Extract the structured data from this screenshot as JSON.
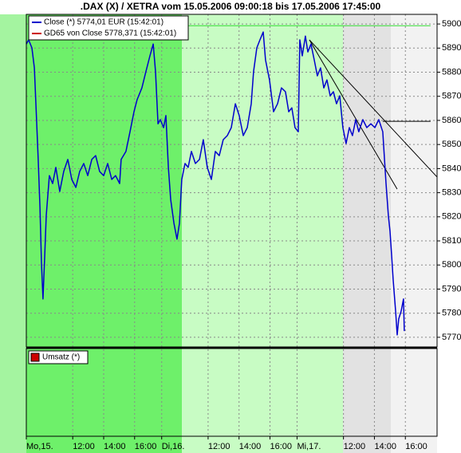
{
  "chart_data": {
    "type": "line",
    "title": ".DAX (X) / XETRA vom 15.05.2006 09:00:18 bis 17.05.2006 17:45:00",
    "x": [
      0,
      0.15,
      0.36,
      0.52,
      0.62,
      0.77,
      0.88,
      0.98,
      1.08,
      1.19,
      1.29,
      1.49,
      1.7,
      1.91,
      2.16,
      2.42,
      2.68,
      2.94,
      3.2,
      3.45,
      3.71,
      3.97,
      4.23,
      4.48,
      4.74,
      5.0,
      5.26,
      5.52,
      5.77,
      6.03,
      6.13,
      6.44,
      6.7,
      6.96,
      7.16,
      7.47,
      7.73,
      7.99,
      8.2,
      8.35,
      8.51,
      8.66,
      8.87,
      9.02,
      9.18,
      9.33,
      9.54,
      9.74,
      9.9,
      10.05,
      10.26,
      10.46,
      10.67,
      10.93,
      11.19,
      11.44,
      11.7,
      11.96,
      12.22,
      12.47,
      12.73,
      12.99,
      13.25,
      13.51,
      13.76,
      14.02,
      14.28,
      14.54,
      14.69,
      14.9,
      15.1,
      15.31,
      15.46,
      15.72,
      15.98,
      16.24,
      16.49,
      16.75,
      16.96,
      17.16,
      17.37,
      17.58,
      17.68,
      17.84,
      18.04,
      18.2,
      18.4,
      18.61,
      18.81,
      19.02,
      19.23,
      19.43,
      19.64,
      19.85,
      20.05,
      20.26,
      20.46,
      20.67,
      20.88,
      21.08,
      21.29,
      21.49,
      21.75,
      22.01,
      22.27,
      22.53,
      22.78,
      23.04,
      23.25,
      23.4,
      23.51,
      23.61,
      23.71,
      23.87,
      23.97,
      24.07,
      24.23,
      24.38,
      24.43
    ],
    "series": [
      {
        "name": "Close (*) 5774,01 EUR (15:42:01)",
        "color": "#0000cc",
        "values": [
          5891.7,
          5893.4,
          5890.1,
          5881.8,
          5866.9,
          5843.8,
          5823.9,
          5800.7,
          5785.9,
          5804.1,
          5820.6,
          5837.1,
          5833.8,
          5840.5,
          5830.5,
          5838.8,
          5843.8,
          5835.5,
          5832.2,
          5838.8,
          5842.1,
          5837.1,
          5843.8,
          5845.4,
          5838.8,
          5837.1,
          5842.1,
          5835.5,
          5837.1,
          5833.8,
          5843.8,
          5847.1,
          5855.3,
          5863.6,
          5868.6,
          5873.5,
          5880.2,
          5886.8,
          5891.7,
          5880.2,
          5858.6,
          5860.3,
          5857.0,
          5862.0,
          5840.5,
          5827.2,
          5817.3,
          5810.7,
          5817.3,
          5835.5,
          5842.1,
          5840.5,
          5847.1,
          5842.1,
          5843.8,
          5852.0,
          5840.5,
          5835.5,
          5847.1,
          5845.4,
          5852.0,
          5853.7,
          5857.0,
          5866.9,
          5862.0,
          5853.7,
          5857.0,
          5866.9,
          5880.2,
          5890.1,
          5893.4,
          5896.7,
          5885.1,
          5876.8,
          5863.6,
          5866.9,
          5873.5,
          5871.9,
          5863.6,
          5865.2,
          5857.0,
          5855.3,
          5893.4,
          5886.8,
          5895.0,
          5888.4,
          5891.7,
          5885.1,
          5878.5,
          5881.8,
          5873.5,
          5876.8,
          5870.2,
          5871.9,
          5866.9,
          5870.2,
          5857.0,
          5850.4,
          5857.0,
          5853.7,
          5860.3,
          5855.3,
          5860.3,
          5857.0,
          5858.6,
          5857.0,
          5860.3,
          5855.3,
          5833.8,
          5820.6,
          5814.0,
          5804.1,
          5794.1,
          5780.9,
          5771.0,
          5777.6,
          5780.9,
          5785.9,
          5772.6
        ]
      }
    ],
    "indicators": [
      {
        "name": "GD65 von Close 5778,371 (15:42:01)",
        "color": "#cc0000"
      }
    ],
    "trend_lines": [
      [
        18.3,
        5893.4,
        26.55,
        5836.5
      ],
      [
        18.3,
        5893.4,
        23.97,
        5831.5
      ],
      [
        23.04,
        5859.6,
        26.13,
        5859.6
      ]
    ],
    "level_line": [
      10.46,
      5899.3,
      26.13,
      5899.3
    ],
    "xlim": [
      0,
      26.55
    ],
    "xticks": [
      {
        "value": 0,
        "label": "Mo,15."
      },
      {
        "value": 3,
        "label": "12:00"
      },
      {
        "value": 5,
        "label": "14:00"
      },
      {
        "value": 7,
        "label": "16:00"
      },
      {
        "value": 8.75,
        "label": "Di,16."
      },
      {
        "value": 11.75,
        "label": "12:00"
      },
      {
        "value": 13.75,
        "label": "14:00"
      },
      {
        "value": 15.75,
        "label": "16:00"
      },
      {
        "value": 17.5,
        "label": "Mi,17."
      },
      {
        "value": 20.5,
        "label": "12:00"
      },
      {
        "value": 22.5,
        "label": "14:00"
      },
      {
        "value": 24.5,
        "label": "16:00"
      }
    ],
    "ylim": [
      5766,
      5904
    ],
    "yticks": [
      5770,
      5780,
      5790,
      5800,
      5810,
      5820,
      5830,
      5840,
      5850,
      5860,
      5870,
      5880,
      5890,
      5900
    ],
    "grid": true,
    "volume_pane": {
      "legend": "Umsatz (*)",
      "color": "#cc0000"
    }
  }
}
